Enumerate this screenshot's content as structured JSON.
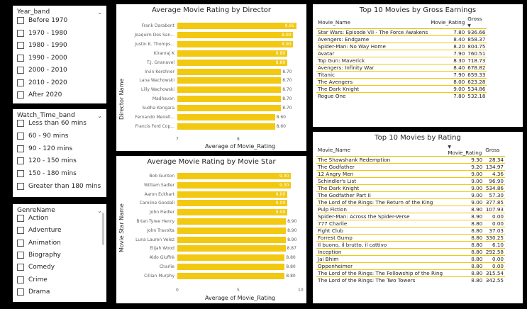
{
  "slicers": {
    "year_band": {
      "title": "Year_band",
      "options": [
        "Before 1970",
        "1970 - 1980",
        "1980 - 1990",
        "1990 - 2000",
        "2000 - 2010",
        "2010 - 2020",
        "After 2020"
      ]
    },
    "watch_time_band": {
      "title": "Watch_Time_band",
      "options": [
        "Less than 60 mins",
        "60 - 90 mins",
        "90 - 120 mins",
        "120 - 150 mins",
        "150 - 180 mins",
        "Greater than 180 mins"
      ]
    },
    "genre": {
      "title": "GenreName",
      "options": [
        "Action",
        "Adventure",
        "Animation",
        "Biography",
        "Comedy",
        "Crime",
        "Drama"
      ]
    }
  },
  "chart_data": [
    {
      "type": "bar",
      "orientation": "horizontal",
      "title": "Average Movie Rating by Director",
      "xlabel": "Average of Movie_Rating",
      "ylabel": "Director Name",
      "xlim": [
        7,
        9
      ],
      "xticks": [
        "7",
        "8"
      ],
      "categories": [
        "Frank Darabont",
        "Joaquim Dos San...",
        "Justin K. Thomps...",
        "Kiranraj K",
        "T.J. Gnanavel",
        "Irvin Kershner",
        "Lana Wachowski",
        "Lilly Wachowski",
        "Madhavan",
        "Sudha Kongara",
        "Fernando Meirell...",
        "Francis Ford Cop..."
      ],
      "values": [
        8.95,
        8.9,
        8.9,
        8.8,
        8.8,
        8.7,
        8.7,
        8.7,
        8.7,
        8.7,
        8.6,
        8.6
      ],
      "labels": [
        "8.95",
        "8.90",
        "8.90",
        "8.80",
        "8.80",
        "8.70",
        "8.70",
        "8.70",
        "8.70",
        "8.70",
        "8.60",
        "8.60"
      ]
    },
    {
      "type": "bar",
      "orientation": "horizontal",
      "title": "Average Movie Rating by Movie Star",
      "xlabel": "Average of Movie_Rating",
      "ylabel": "Movie Star Name",
      "xlim": [
        0,
        10
      ],
      "xticks": [
        "0",
        "5",
        "10"
      ],
      "categories": [
        "Bob Gunton",
        "William Sadler",
        "Aaron Eckhart",
        "Caroline Goodall",
        "John Fiedler",
        "Brian Tyree Henry",
        "John Travolta",
        "Luna Lauren Velez",
        "Elijah Wood",
        "Aldo Giuffrè",
        "Charlie",
        "Cillian Murphy"
      ],
      "values": [
        9.3,
        9.3,
        9.0,
        9.0,
        9.0,
        8.9,
        8.9,
        8.9,
        8.87,
        8.8,
        8.8,
        8.8
      ],
      "labels": [
        "9.30",
        "9.30",
        "9.00",
        "9.00",
        "9.00",
        "8.90",
        "8.90",
        "8.90",
        "8.87",
        "8.80",
        "8.80",
        "8.80"
      ]
    }
  ],
  "gross_table": {
    "title": "Top 10 Movies by Gross Earnings",
    "headers": [
      "Movie_Name",
      "Movie_Rating",
      "Gross"
    ],
    "rows": [
      [
        "Star Wars: Episode VII - The Force Awakens",
        "7.80",
        "936.66"
      ],
      [
        "Avengers: Endgame",
        "8.40",
        "858.37"
      ],
      [
        "Spider-Man: No Way Home",
        "8.20",
        "804.75"
      ],
      [
        "Avatar",
        "7.90",
        "760.51"
      ],
      [
        "Top Gun: Maverick",
        "8.30",
        "718.73"
      ],
      [
        "Avengers: Infinity War",
        "8.40",
        "678.82"
      ],
      [
        "Titanic",
        "7.90",
        "659.33"
      ],
      [
        "The Avengers",
        "8.00",
        "623.28"
      ],
      [
        "The Dark Knight",
        "9.00",
        "534.86"
      ],
      [
        "Rogue One",
        "7.80",
        "532.18"
      ]
    ]
  },
  "rating_table": {
    "title": "Top 10 Movies by Rating",
    "headers": [
      "Movie_Name",
      "Movie_Rating",
      "Gross"
    ],
    "rows": [
      [
        "The Shawshank Redemption",
        "9.30",
        "28.34"
      ],
      [
        "The Godfather",
        "9.20",
        "134.97"
      ],
      [
        "12 Angry Men",
        "9.00",
        "4.36"
      ],
      [
        "Schindler's List",
        "9.00",
        "96.90"
      ],
      [
        "The Dark Knight",
        "9.00",
        "534.86"
      ],
      [
        "The Godfather Part II",
        "9.00",
        "57.30"
      ],
      [
        "The Lord of the Rings: The Return of the King",
        "9.00",
        "377.85"
      ],
      [
        "Pulp Fiction",
        "8.90",
        "107.93"
      ],
      [
        "Spider-Man: Across the Spider-Verse",
        "8.90",
        "0.00"
      ],
      [
        "777 Charlie",
        "8.80",
        "0.00"
      ],
      [
        "Fight Club",
        "8.80",
        "37.03"
      ],
      [
        "Forrest Gump",
        "8.80",
        "330.25"
      ],
      [
        "Il buono, il brutto, il cattivo",
        "8.80",
        "6.10"
      ],
      [
        "Inception",
        "8.80",
        "292.58"
      ],
      [
        "Jai Bhim",
        "8.80",
        "0.00"
      ],
      [
        "Oppenheimer",
        "8.80",
        "0.00"
      ],
      [
        "The Lord of the Rings: The Fellowship of the Ring",
        "8.80",
        "315.54"
      ],
      [
        "The Lord of the Rings: The Two Towers",
        "8.80",
        "342.55"
      ]
    ]
  }
}
